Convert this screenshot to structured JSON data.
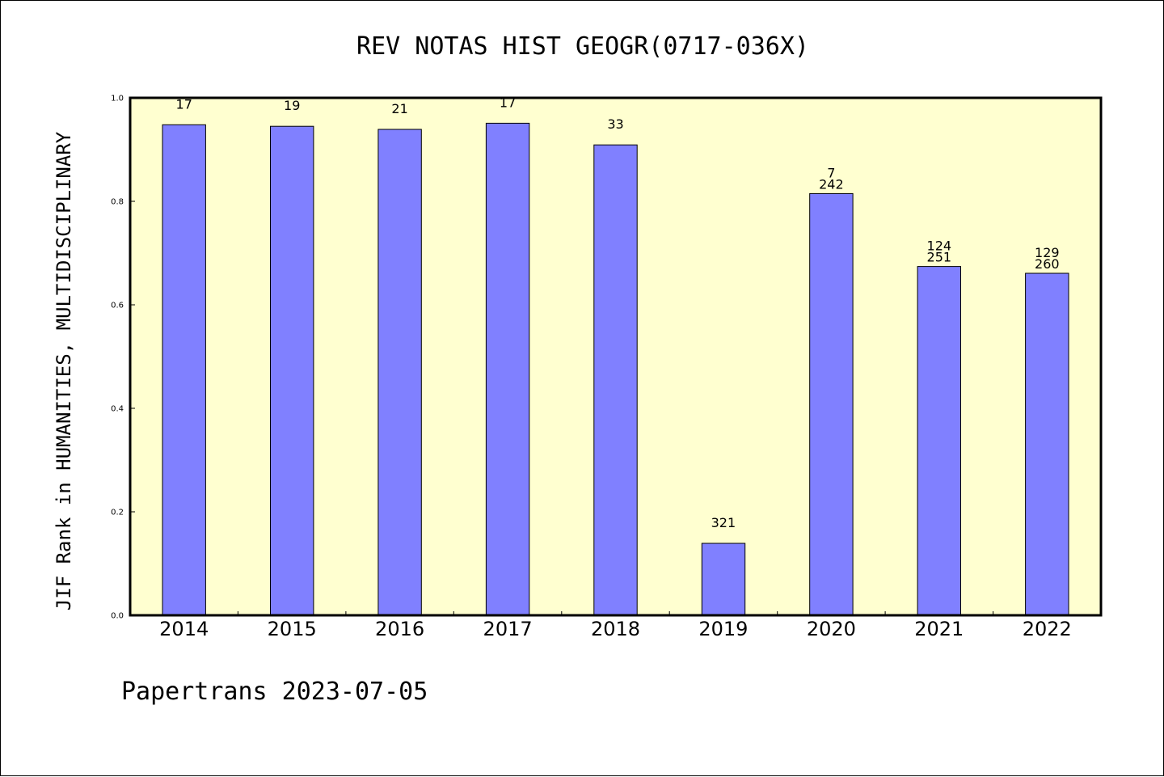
{
  "chart_data": {
    "type": "bar",
    "title": "REV NOTAS HIST GEOGR(0717-036X)",
    "xlabel": "",
    "ylabel": "JIF Rank in HUMANITIES, MULTIDISCIPLINARY",
    "ylim": [
      0,
      1.0
    ],
    "yticks": [
      "0.0",
      "0.2",
      "0.4",
      "0.6",
      "0.8",
      "1.0"
    ],
    "categories": [
      "2014",
      "2015",
      "2016",
      "2017",
      "2018",
      "2019",
      "2020",
      "2021",
      "2022"
    ],
    "values": [
      0.948,
      0.945,
      0.939,
      0.951,
      0.909,
      0.139,
      0.815,
      0.674,
      0.661
    ],
    "data_labels": [
      [
        "17"
      ],
      [
        "19"
      ],
      [
        "21"
      ],
      [
        "17"
      ],
      [
        "33"
      ],
      [
        "321"
      ],
      [
        "7",
        "242"
      ],
      [
        "124",
        "251"
      ],
      [
        "129",
        "260"
      ]
    ],
    "grid": false,
    "colors": {
      "bar_fill": "#8080ff",
      "bar_stroke": "#000000",
      "plot_background": "#ffffd0",
      "page_background": "#ffffff"
    }
  },
  "footer": {
    "text": "Papertrans 2023-07-05"
  }
}
